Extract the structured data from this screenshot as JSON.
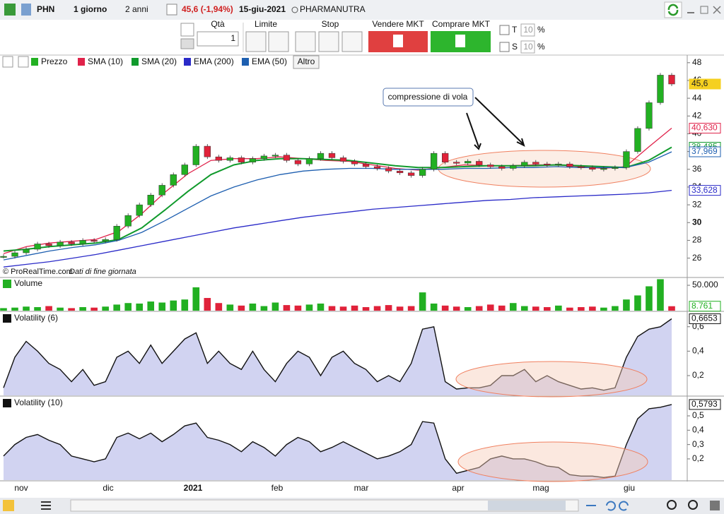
{
  "toolbar": {
    "symbol": "PHN",
    "interval": "1 giorno",
    "period": "2 anni",
    "change": "45,6 (-1,94%)",
    "date": "15-giu-2021",
    "name": "PHARMANUTRA"
  },
  "order_bar": {
    "qty_label": "Qtà",
    "qty": 1,
    "limit": "Limite",
    "stop": "Stop",
    "sell": "Vendere MKT",
    "buy": "Comprare MKT",
    "t_label": "T",
    "t_value": 10,
    "t_unit": "%",
    "s_label": "S",
    "s_value": 10,
    "s_unit": "%"
  },
  "more": "Altro",
  "footer": {
    "copyright": "© ProRealTime.com",
    "note": "Dati di fine giornata"
  },
  "x_labels": [
    "nov",
    "dic",
    "2021",
    "feb",
    "mar",
    "apr",
    "mag",
    "giu"
  ],
  "chart_data": [
    {
      "type": "price",
      "annotation": "compressione di vola",
      "ylim": [
        23.9,
        48.7
      ],
      "yticks": [
        26,
        28,
        30,
        32,
        34,
        36,
        38,
        40,
        42,
        44,
        46,
        48
      ],
      "up_color": "#22b022",
      "down_color": "#e0223a",
      "series": [
        {
          "name": "Prezzo",
          "color": "#22b022",
          "tag": "45,6",
          "tag_fill": "#f5d020",
          "values": [
            26.2,
            26.6,
            27.0,
            27.6,
            27.4,
            27.8,
            27.6,
            28.0,
            27.9,
            28.1,
            29.6,
            30.8,
            32.0,
            33.1,
            34.2,
            35.4,
            36.5,
            38.6,
            37.4,
            37.0,
            37.3,
            36.8,
            37.2,
            37.5,
            37.6,
            37.0,
            36.6,
            37.2,
            37.8,
            37.3,
            36.9,
            36.6,
            36.3,
            36.1,
            35.8,
            35.6,
            35.3,
            36.0,
            37.8,
            36.8,
            36.7,
            36.9,
            36.5,
            36.3,
            36.1,
            36.4,
            36.8,
            36.6,
            36.5,
            36.6,
            36.3,
            36.2,
            36.0,
            36.1,
            36.2,
            38.0,
            40.6,
            43.5,
            46.6,
            45.6
          ]
        },
        {
          "name": "SMA (10)",
          "color": "#e0224a",
          "tag": "40,630",
          "values": [
            26.5,
            27.3,
            27.7,
            27.9,
            28.1,
            29.0,
            31.0,
            33.4,
            35.5,
            37.0,
            37.2,
            37.2,
            37.4,
            37.2,
            37.0,
            36.9,
            36.5,
            36.1,
            35.9,
            36.2,
            36.5,
            36.4,
            36.4,
            36.5,
            36.5,
            36.3,
            36.1,
            36.3,
            38.5,
            40.63
          ]
        },
        {
          "name": "SMA (20)",
          "color": "#109a2c",
          "tag": "38,485",
          "values": [
            26.8,
            27.0,
            27.3,
            27.5,
            27.7,
            28.1,
            29.4,
            31.4,
            33.5,
            35.4,
            36.5,
            37.0,
            37.2,
            37.2,
            37.1,
            37.0,
            36.7,
            36.4,
            36.2,
            36.2,
            36.3,
            36.4,
            36.4,
            36.4,
            36.5,
            36.4,
            36.3,
            36.2,
            37.0,
            38.485
          ]
        },
        {
          "name": "EMA (200)",
          "color": "#2a2ac8",
          "tag": "33,628",
          "values": [
            25.0,
            25.3,
            25.6,
            26.0,
            26.4,
            26.9,
            27.4,
            27.9,
            28.4,
            28.9,
            29.4,
            29.8,
            30.2,
            30.6,
            30.9,
            31.2,
            31.5,
            31.7,
            31.9,
            32.1,
            32.3,
            32.5,
            32.6,
            32.8,
            32.9,
            33.0,
            33.1,
            33.2,
            33.35,
            33.628
          ]
        },
        {
          "name": "EMA (50)",
          "color": "#1e5fb0",
          "tag": "37,969",
          "values": [
            25.8,
            26.3,
            26.8,
            27.2,
            27.5,
            28.0,
            28.9,
            30.2,
            31.6,
            33.0,
            34.0,
            34.8,
            35.4,
            35.8,
            36.0,
            36.1,
            36.1,
            36.0,
            36.0,
            36.0,
            36.1,
            36.1,
            36.2,
            36.2,
            36.3,
            36.2,
            36.2,
            36.2,
            36.8,
            37.969
          ]
        }
      ]
    },
    {
      "type": "bar",
      "ylim": [
        0,
        64000
      ],
      "yticks": [
        {
          "value": 50000,
          "label": "50.000"
        }
      ],
      "series": [
        {
          "name": "Volume",
          "color": "#22b022",
          "down_color": "#e0223a",
          "tag": "8.761",
          "values": [
            5000,
            6000,
            8000,
            7000,
            9000,
            6000,
            5000,
            7000,
            6000,
            8000,
            12000,
            15000,
            14000,
            18000,
            16000,
            20000,
            22000,
            46000,
            25000,
            15000,
            12000,
            10000,
            14000,
            9000,
            16000,
            11000,
            10000,
            12000,
            14000,
            9000,
            8000,
            10000,
            7000,
            9000,
            11000,
            8000,
            9000,
            36000,
            14000,
            10000,
            8000,
            7000,
            9000,
            12000,
            10000,
            15000,
            9000,
            8000,
            7000,
            10000,
            6000,
            7000,
            8000,
            6000,
            9000,
            22000,
            30000,
            48000,
            62000,
            8761
          ]
        }
      ]
    },
    {
      "type": "area",
      "ylim": [
        0.038,
        0.72
      ],
      "yticks": [
        {
          "value": 0.2,
          "label": "0,2"
        },
        {
          "value": 0.4,
          "label": "0,4"
        },
        {
          "value": 0.6,
          "label": "0,6"
        }
      ],
      "series": [
        {
          "name": "Volatility (6)",
          "color": "#111111",
          "fill": "#c5c8ee",
          "tag": "0,6653",
          "values": [
            0.1,
            0.35,
            0.48,
            0.4,
            0.3,
            0.25,
            0.15,
            0.25,
            0.12,
            0.15,
            0.35,
            0.4,
            0.3,
            0.45,
            0.3,
            0.4,
            0.5,
            0.55,
            0.3,
            0.4,
            0.3,
            0.25,
            0.4,
            0.25,
            0.15,
            0.3,
            0.4,
            0.35,
            0.2,
            0.35,
            0.4,
            0.3,
            0.25,
            0.15,
            0.2,
            0.15,
            0.3,
            0.58,
            0.6,
            0.15,
            0.09,
            0.1,
            0.1,
            0.12,
            0.2,
            0.2,
            0.25,
            0.15,
            0.2,
            0.15,
            0.12,
            0.09,
            0.1,
            0.08,
            0.1,
            0.35,
            0.52,
            0.58,
            0.6,
            0.6653
          ]
        }
      ]
    },
    {
      "type": "area",
      "ylim": [
        0.052,
        0.633
      ],
      "yticks": [
        {
          "value": 0.2,
          "label": "0,2"
        },
        {
          "value": 0.3,
          "label": "0,3"
        },
        {
          "value": 0.4,
          "label": "0,4"
        },
        {
          "value": 0.5,
          "label": "0,5"
        }
      ],
      "series": [
        {
          "name": "Volatility (10)",
          "color": "#111111",
          "fill": "#c5c8ee",
          "tag": "0,5793",
          "values": [
            0.22,
            0.3,
            0.35,
            0.37,
            0.33,
            0.3,
            0.22,
            0.2,
            0.18,
            0.2,
            0.35,
            0.38,
            0.34,
            0.38,
            0.32,
            0.37,
            0.43,
            0.45,
            0.35,
            0.33,
            0.3,
            0.25,
            0.32,
            0.28,
            0.22,
            0.3,
            0.35,
            0.32,
            0.25,
            0.28,
            0.32,
            0.28,
            0.24,
            0.2,
            0.22,
            0.25,
            0.3,
            0.46,
            0.45,
            0.2,
            0.1,
            0.12,
            0.14,
            0.2,
            0.22,
            0.2,
            0.2,
            0.18,
            0.15,
            0.14,
            0.09,
            0.08,
            0.08,
            0.07,
            0.08,
            0.3,
            0.48,
            0.55,
            0.56,
            0.5793
          ]
        }
      ]
    }
  ]
}
